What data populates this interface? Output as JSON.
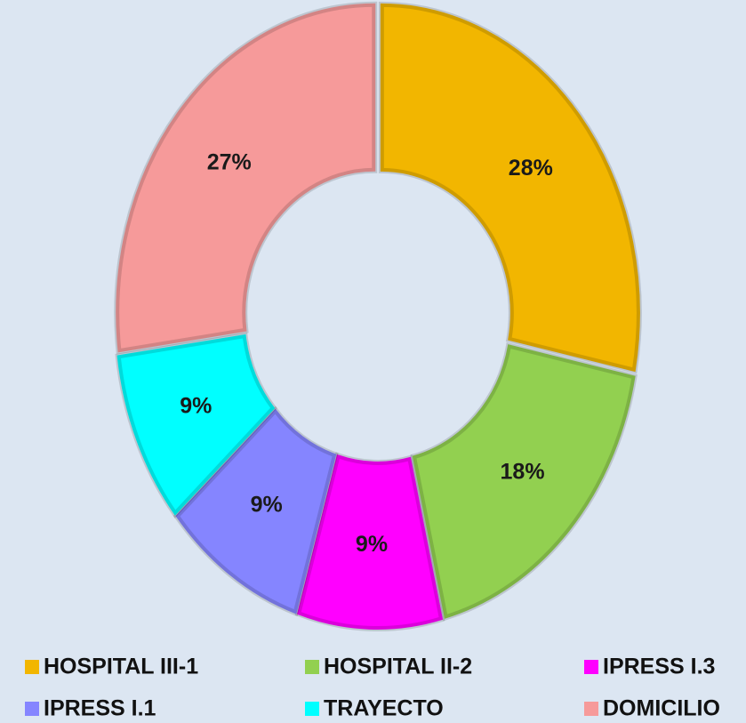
{
  "chart_data": {
    "type": "pie",
    "categories": [
      "HOSPITAL III-1",
      "HOSPITAL II-2",
      "IPRESS I.3",
      "IPRESS I.1",
      "TRAYECTO",
      "DOMICILIO"
    ],
    "values": [
      28,
      18,
      9,
      9,
      9,
      27
    ],
    "value_labels": [
      "28%",
      "18%",
      "9%",
      "9%",
      "9%",
      "27%"
    ],
    "colors": [
      "#f2b600",
      "#92d050",
      "#ff00ff",
      "#8585ff",
      "#00ffff",
      "#f69a9a"
    ],
    "donut": true,
    "legend": "bottom"
  }
}
